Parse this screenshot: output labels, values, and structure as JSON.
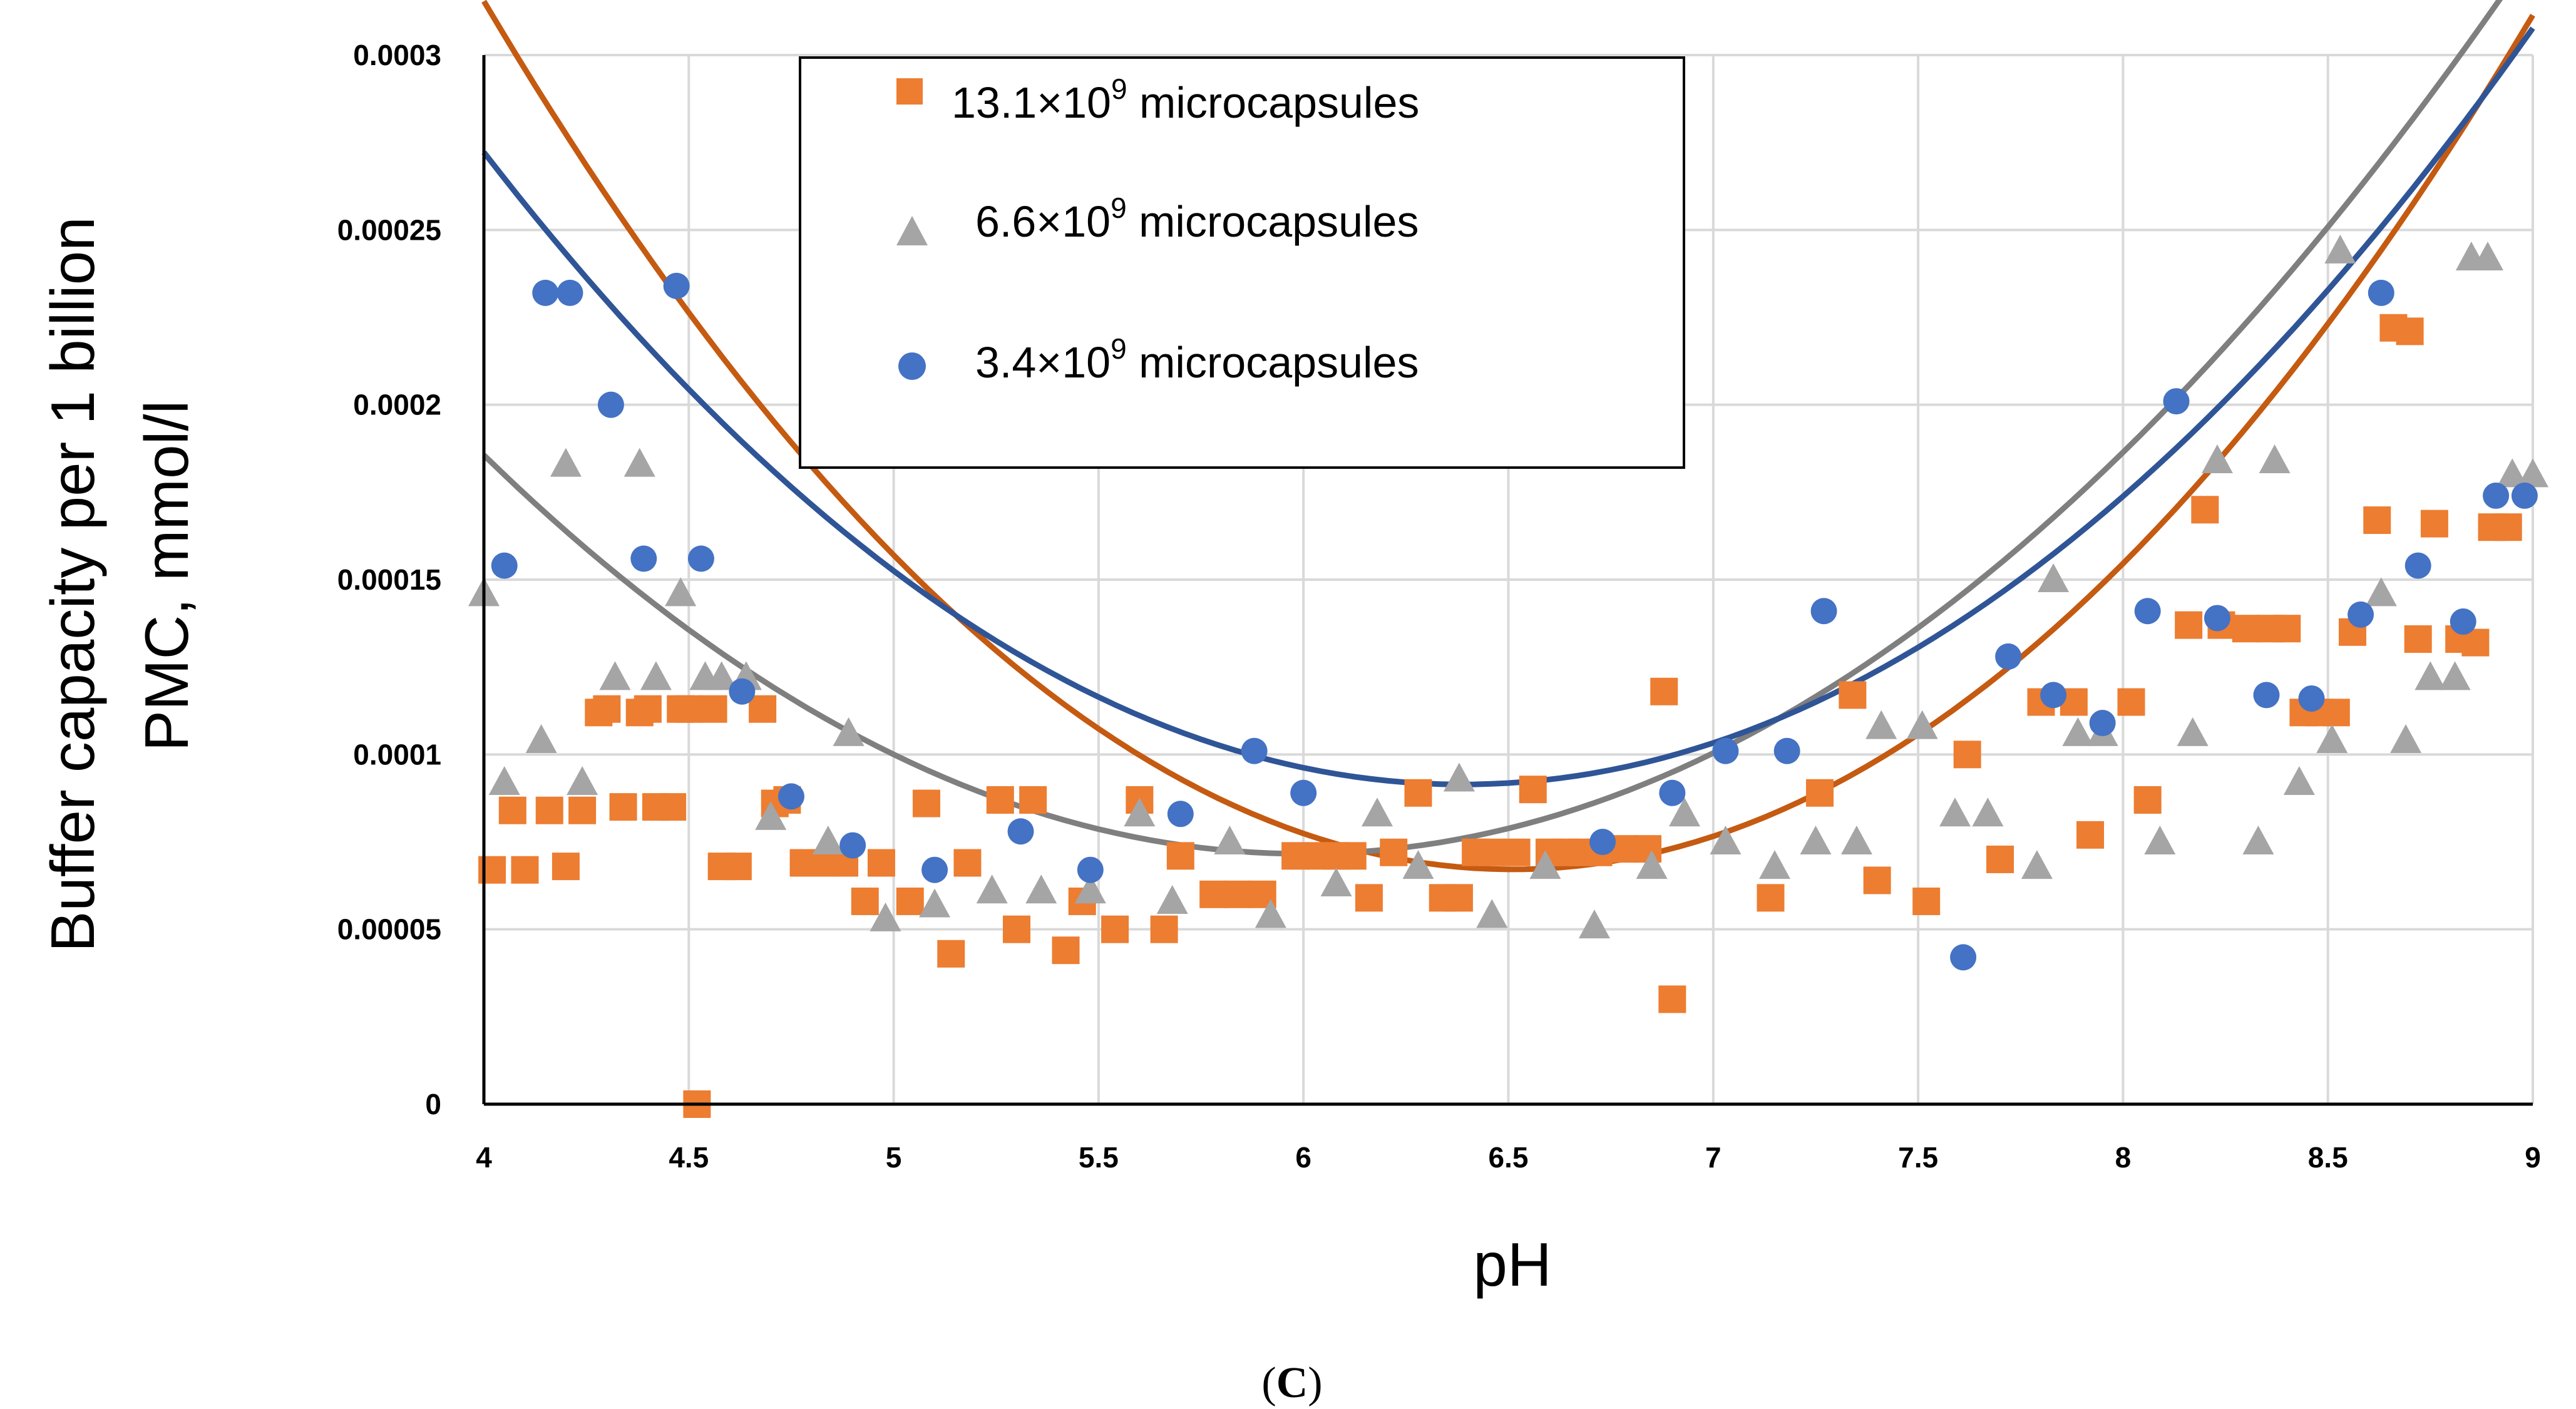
{
  "chart_data": {
    "type": "scatter",
    "panel_label": {
      "open": "(",
      "letter": "C",
      "close": ")"
    },
    "xlabel": "pH",
    "ylabel_line1": "Buffer capacity per 1 billion",
    "ylabel_line2": "PMC, mmol/l",
    "xlim": [
      4,
      9
    ],
    "ylim": [
      0,
      0.0003
    ],
    "grid": true,
    "legend_position": "top-center",
    "x_ticks": [
      "4",
      "4.5",
      "5",
      "5.5",
      "6",
      "6.5",
      "7",
      "7.5",
      "8",
      "8.5",
      "9"
    ],
    "y_ticks": [
      "0",
      "0.00005",
      "0.0001",
      "0.00015",
      "0.0002",
      "0.00025",
      "0.0003"
    ],
    "series": [
      {
        "name_base": "13.1×10",
        "name_sup": "9",
        "name_rest": " microcapsules",
        "marker": "square",
        "color": "#ED7D31",
        "trend_color": "#C55A11",
        "trendline": [
          3.94e-05,
          -0.000513,
          0.001737
        ],
        "x": [
          4.02,
          4.07,
          4.1,
          4.16,
          4.2,
          4.24,
          4.28,
          4.3,
          4.34,
          4.38,
          4.4,
          4.42,
          4.46,
          4.48,
          4.5,
          4.52,
          4.56,
          4.58,
          4.62,
          4.68,
          4.71,
          4.74,
          4.78,
          4.84,
          4.88,
          4.93,
          4.97,
          5.04,
          5.08,
          5.14,
          5.18,
          5.26,
          5.3,
          5.34,
          5.42,
          5.46,
          5.54,
          5.6,
          5.66,
          5.7,
          5.78,
          5.84,
          5.9,
          5.98,
          6.04,
          6.08,
          6.12,
          6.16,
          6.22,
          6.28,
          6.34,
          6.38,
          6.42,
          6.46,
          6.52,
          6.56,
          6.6,
          6.64,
          6.68,
          6.72,
          6.78,
          6.84,
          6.88,
          6.9,
          7.14,
          7.26,
          7.34,
          7.4,
          7.52,
          7.62,
          7.7,
          7.8,
          7.88,
          7.92,
          8.02,
          8.06,
          8.16,
          8.2,
          8.24,
          8.3,
          8.36,
          8.4,
          8.44,
          8.48,
          8.52,
          8.56,
          8.62,
          8.66,
          8.7,
          8.72,
          8.76,
          8.82,
          8.86,
          8.9,
          8.94
        ],
        "y": [
          6.7e-05,
          8.4e-05,
          6.7e-05,
          8.4e-05,
          6.8e-05,
          8.4e-05,
          0.000112,
          0.000113,
          8.5e-05,
          0.000112,
          0.000113,
          8.5e-05,
          8.5e-05,
          0.000113,
          0.000113,
          0.0,
          0.000113,
          6.8e-05,
          6.8e-05,
          0.000113,
          8.6e-05,
          8.7e-05,
          6.9e-05,
          6.9e-05,
          6.9e-05,
          5.8e-05,
          6.9e-05,
          5.8e-05,
          8.6e-05,
          4.3e-05,
          6.9e-05,
          8.7e-05,
          5e-05,
          8.7e-05,
          4.4e-05,
          5.8e-05,
          5e-05,
          8.7e-05,
          5e-05,
          7.1e-05,
          6e-05,
          6e-05,
          6e-05,
          7.1e-05,
          7.1e-05,
          7.1e-05,
          7.1e-05,
          5.9e-05,
          7.2e-05,
          8.9e-05,
          5.9e-05,
          5.9e-05,
          7.2e-05,
          7.2e-05,
          7.2e-05,
          9e-05,
          7.2e-05,
          7.2e-05,
          7.2e-05,
          7.2e-05,
          7.3e-05,
          7.3e-05,
          0.000118,
          3e-05,
          5.9e-05,
          8.9e-05,
          0.000117,
          6.4e-05,
          5.8e-05,
          0.0001,
          7e-05,
          0.000115,
          0.000115,
          7.7e-05,
          0.000115,
          8.7e-05,
          0.000137,
          0.00017,
          0.000137,
          0.000136,
          0.000136,
          0.000136,
          0.000112,
          0.000112,
          0.000112,
          0.000135,
          0.000167,
          0.000222,
          0.000221,
          0.000133,
          0.000166,
          0.000133,
          0.000132,
          0.000165,
          0.000165
        ]
      },
      {
        "name_base": "6.6×10",
        "name_sup": "9",
        "name_rest": " microcapsules",
        "marker": "triangle",
        "color": "#A5A5A5",
        "trend_color": "#7F7F7F",
        "trendline": [
          2.86e-05,
          -0.000343,
          0.0011
        ],
        "x": [
          4.0,
          4.05,
          4.14,
          4.2,
          4.24,
          4.32,
          4.38,
          4.42,
          4.48,
          4.54,
          4.58,
          4.64,
          4.7,
          4.84,
          4.89,
          4.98,
          5.1,
          5.24,
          5.36,
          5.48,
          5.6,
          5.68,
          5.82,
          5.92,
          6.08,
          6.18,
          6.28,
          6.38,
          6.46,
          6.59,
          6.71,
          6.85,
          6.93,
          7.03,
          7.15,
          7.25,
          7.35,
          7.41,
          7.51,
          7.59,
          7.67,
          7.79,
          7.83,
          7.89,
          7.95,
          8.09,
          8.17,
          8.23,
          8.33,
          8.37,
          8.43,
          8.51,
          8.53,
          8.63,
          8.69,
          8.75,
          8.81,
          8.85,
          8.89,
          8.95,
          9.0
        ],
        "y": [
          0.000146,
          9.2e-05,
          0.000104,
          0.000183,
          9.2e-05,
          0.000122,
          0.000183,
          0.000122,
          0.000146,
          0.000122,
          0.000122,
          0.000122,
          8.2e-05,
          7.5e-05,
          0.000106,
          5.3e-05,
          5.7e-05,
          6.1e-05,
          6.1e-05,
          6.1e-05,
          8.3e-05,
          5.8e-05,
          7.5e-05,
          5.4e-05,
          6.3e-05,
          8.3e-05,
          6.8e-05,
          9.3e-05,
          5.4e-05,
          6.8e-05,
          5.1e-05,
          6.8e-05,
          8.3e-05,
          7.5e-05,
          6.8e-05,
          7.5e-05,
          7.5e-05,
          0.000108,
          0.000108,
          8.3e-05,
          8.3e-05,
          6.8e-05,
          0.00015,
          0.000106,
          0.000106,
          7.5e-05,
          0.000106,
          0.000184,
          7.5e-05,
          0.000184,
          9.2e-05,
          0.000104,
          0.000244,
          0.000146,
          0.000104,
          0.000122,
          0.000122,
          0.000242,
          0.000242,
          0.00018,
          0.00018
        ]
      },
      {
        "name_base": "3.4×10",
        "name_sup": "9",
        "name_rest": " microcapsules",
        "marker": "circle",
        "color": "#4472C4",
        "trend_color": "#2F5597",
        "trendline": [
          3.17e-05,
          -0.000405,
          0.001385
        ],
        "x": [
          4.05,
          4.15,
          4.21,
          4.31,
          4.39,
          4.47,
          4.53,
          4.63,
          4.75,
          4.9,
          5.1,
          5.31,
          5.48,
          5.7,
          5.88,
          6.0,
          6.73,
          6.9,
          7.03,
          7.18,
          7.27,
          7.61,
          7.72,
          7.83,
          7.95,
          8.06,
          8.13,
          8.23,
          8.35,
          8.46,
          8.58,
          8.63,
          8.72,
          8.83,
          8.91,
          8.98
        ],
        "y": [
          0.000154,
          0.000232,
          0.000232,
          0.0002,
          0.000156,
          0.000234,
          0.000156,
          0.000118,
          8.8e-05,
          7.4e-05,
          6.7e-05,
          7.8e-05,
          6.7e-05,
          8.3e-05,
          0.000101,
          8.9e-05,
          7.5e-05,
          8.9e-05,
          0.000101,
          0.000101,
          0.000141,
          4.2e-05,
          0.000128,
          0.000117,
          0.000109,
          0.000141,
          0.000201,
          0.000139,
          0.000117,
          0.000116,
          0.00014,
          0.000232,
          0.000154,
          0.000138,
          0.000174,
          0.000174
        ]
      }
    ]
  }
}
